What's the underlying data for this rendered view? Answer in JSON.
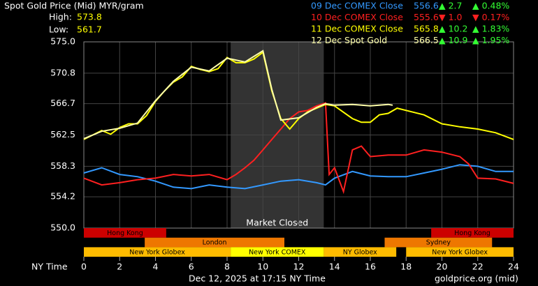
{
  "chart_data": {
    "type": "line",
    "title": "Spot Gold Price (Mid) MYR/gram",
    "high_label": "High:",
    "high": 573.8,
    "low_label": "Low:",
    "low": 561.7,
    "xlabel": "NY Time",
    "footer": "Dec 12, 2025 at 17:15 NY Time",
    "source": "goldprice.org (mid)",
    "xlim": [
      0,
      24
    ],
    "xticks": [
      0,
      2,
      4,
      6,
      8,
      10,
      12,
      14,
      16,
      18,
      20,
      22,
      24
    ],
    "ylim": [
      550,
      575
    ],
    "yticks": [
      {
        "value": 550,
        "label": "550.0"
      },
      554.2,
      558.3,
      562.5,
      566.7,
      570.8,
      {
        "value": 575,
        "label": "575.0"
      }
    ],
    "grid": true,
    "closed": {
      "label": "Market Closed",
      "start": 8.2,
      "end": 13.4
    },
    "session_rows": [
      [
        {
          "label": "Hong Kong",
          "start": 0,
          "end": 4.6,
          "color": "#cc0000"
        },
        {
          "label": "Hong Kong",
          "start": 19.4,
          "end": 24,
          "color": "#cc0000"
        }
      ],
      [
        {
          "label": "London",
          "start": 3.4,
          "end": 11.2,
          "color": "#ee7700"
        },
        {
          "label": "Sydney",
          "start": 16.8,
          "end": 22.8,
          "color": "#ee7700"
        }
      ],
      [
        {
          "label": "New York Globex",
          "start": 0,
          "end": 8.2,
          "color": "#ffbb00"
        },
        {
          "label": "New York COMEX",
          "start": 8.2,
          "end": 13.4,
          "color": "#ffff00"
        },
        {
          "label": "NY Globex",
          "start": 13.4,
          "end": 17.45,
          "color": "#ffbb00"
        },
        {
          "label": "New York Globex",
          "start": 18,
          "end": 24,
          "color": "#ffbb00"
        }
      ]
    ],
    "series": [
      {
        "name": "09 Dec COMEX Close",
        "color": "#3399ff",
        "close": 556.6,
        "change_label": "▲ 2.7",
        "change_color": "#33ff33",
        "pct_label": "▲ 0.48%",
        "pct_color": "#33ff33",
        "x": [
          0,
          1,
          2,
          3,
          4,
          5,
          6,
          7,
          8,
          9,
          10,
          11,
          12,
          13,
          13.5,
          14,
          15,
          16,
          17,
          18,
          19,
          20,
          21,
          22,
          23,
          24
        ],
        "values": [
          557.4,
          558.1,
          557.2,
          556.9,
          556.3,
          555.5,
          555.3,
          555.8,
          555.5,
          555.3,
          555.8,
          556.3,
          556.5,
          556.1,
          555.8,
          556.7,
          557.6,
          557.0,
          556.9,
          556.9,
          557.4,
          557.9,
          558.5,
          558.3,
          557.6,
          557.6
        ]
      },
      {
        "name": "10 Dec COMEX Close",
        "color": "#ff2020",
        "close": 555.6,
        "change_label": "▼ 1.0",
        "change_color": "#ff2020",
        "pct_label": "▼ 0.17%",
        "pct_color": "#ff2020",
        "x": [
          0,
          1,
          2,
          3,
          4,
          5,
          6,
          7,
          8,
          8.5,
          9,
          9.5,
          10,
          10.5,
          11,
          11.5,
          12,
          12.5,
          13,
          13.5,
          13.7,
          14,
          14.5,
          15,
          15.5,
          16,
          17,
          18,
          19,
          20,
          21,
          21.5,
          22,
          23,
          24
        ],
        "values": [
          556.7,
          555.8,
          556.1,
          556.5,
          556.7,
          557.2,
          557.0,
          557.2,
          556.5,
          557.2,
          558.1,
          559.1,
          560.5,
          561.9,
          563.3,
          564.7,
          565.6,
          565.8,
          566.4,
          566.8,
          557.2,
          558.1,
          554.9,
          560.5,
          561.0,
          559.6,
          559.8,
          559.8,
          560.5,
          560.2,
          559.6,
          558.6,
          556.7,
          556.6,
          556.0
        ]
      },
      {
        "name": "11 Dec COMEX Close",
        "color": "#ffff00",
        "close": 565.8,
        "change_label": "▲ 10.2",
        "change_color": "#33ff33",
        "pct_label": "▲ 1.83%",
        "pct_color": "#33ff33",
        "x": [
          0,
          1,
          1.5,
          2,
          2.5,
          3,
          3.5,
          4,
          4.5,
          5,
          5.5,
          6,
          6.5,
          7,
          7.5,
          8,
          8.5,
          9,
          9.5,
          10,
          10.5,
          11,
          11.5,
          12,
          12.5,
          13,
          13.5,
          14,
          15,
          15.5,
          16,
          16.5,
          17,
          17.5,
          18,
          19,
          20,
          21,
          22,
          23,
          24
        ],
        "values": [
          561.9,
          563.1,
          562.6,
          563.5,
          564.0,
          564.0,
          565.1,
          567.0,
          568.4,
          569.6,
          570.3,
          571.7,
          571.3,
          571.0,
          571.4,
          572.9,
          572.2,
          572.2,
          572.7,
          573.6,
          568.4,
          564.7,
          563.3,
          564.7,
          565.6,
          566.1,
          566.6,
          566.4,
          564.7,
          564.2,
          564.2,
          565.2,
          565.4,
          566.1,
          565.8,
          565.2,
          564.0,
          563.6,
          563.3,
          562.8,
          561.9
        ]
      },
      {
        "name": "12 Dec Spot Gold",
        "color": "#ffffaa",
        "close": 566.5,
        "change_label": "▲ 10.9",
        "change_color": "#33ff33",
        "pct_label": "▲ 1.95%",
        "pct_color": "#33ff33",
        "x": [
          0,
          1,
          2,
          3,
          4,
          5,
          6,
          7,
          8,
          9,
          10,
          10.5,
          11,
          12,
          13,
          13.5,
          14,
          15,
          16,
          17,
          17.25
        ],
        "values": [
          562.0,
          563.0,
          563.4,
          564.1,
          567.1,
          569.7,
          571.6,
          571.1,
          572.8,
          572.3,
          573.8,
          568.6,
          564.5,
          564.8,
          566.2,
          566.7,
          566.5,
          566.6,
          566.4,
          566.6,
          566.5
        ]
      }
    ]
  }
}
